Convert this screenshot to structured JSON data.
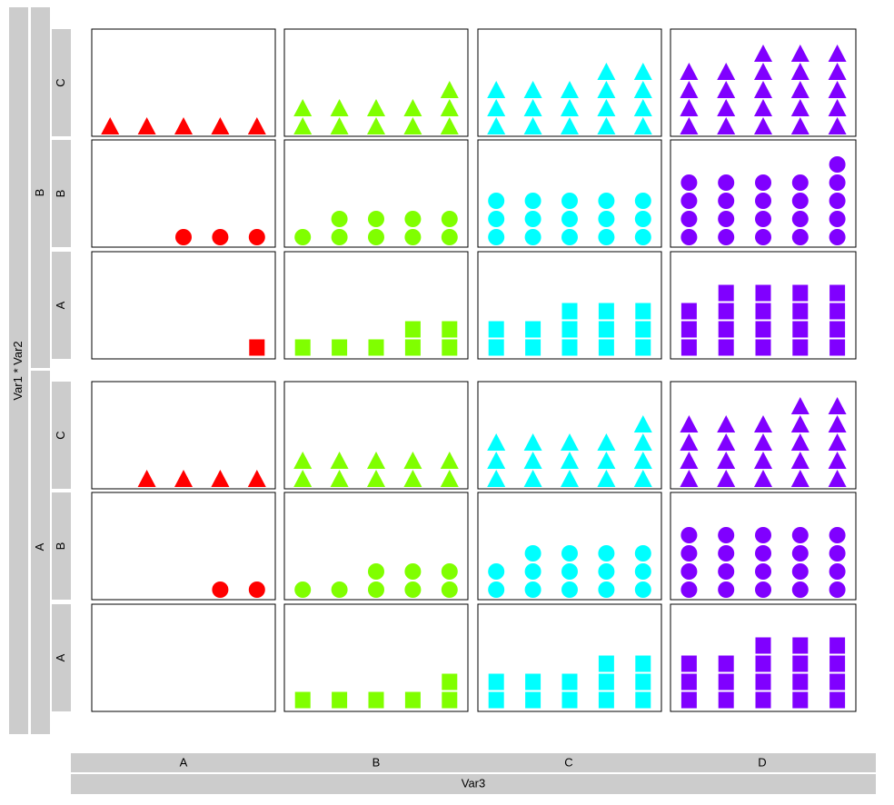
{
  "chart_data": {
    "type": "mosaic-facet",
    "ylabel": "Var1 * Var2",
    "xlabel": "Var3",
    "var1_levels": [
      "B",
      "A"
    ],
    "var2_levels": [
      "C",
      "B",
      "A"
    ],
    "var3_levels": [
      "A",
      "B",
      "C",
      "D"
    ],
    "shapes_by_var2": {
      "C": "triangle",
      "B": "circle",
      "A": "square"
    },
    "colors_by_var3": {
      "A": "#ff0000",
      "B": "#80ff00",
      "C": "#00ffff",
      "D": "#8000ff"
    },
    "ylim": [
      0,
      5
    ],
    "points_per_panel": 5,
    "panels": [
      {
        "var1": "B",
        "var2": "C",
        "var3": "A",
        "counts": [
          1,
          1,
          1,
          1,
          1
        ]
      },
      {
        "var1": "B",
        "var2": "C",
        "var3": "B",
        "counts": [
          2,
          2,
          2,
          2,
          3
        ]
      },
      {
        "var1": "B",
        "var2": "C",
        "var3": "C",
        "counts": [
          3,
          3,
          3,
          4,
          4
        ]
      },
      {
        "var1": "B",
        "var2": "C",
        "var3": "D",
        "counts": [
          4,
          4,
          5,
          5,
          5
        ]
      },
      {
        "var1": "B",
        "var2": "B",
        "var3": "A",
        "counts": [
          0,
          0,
          1,
          1,
          1
        ]
      },
      {
        "var1": "B",
        "var2": "B",
        "var3": "B",
        "counts": [
          1,
          2,
          2,
          2,
          2
        ]
      },
      {
        "var1": "B",
        "var2": "B",
        "var3": "C",
        "counts": [
          3,
          3,
          3,
          3,
          3
        ]
      },
      {
        "var1": "B",
        "var2": "B",
        "var3": "D",
        "counts": [
          4,
          4,
          4,
          4,
          5
        ]
      },
      {
        "var1": "B",
        "var2": "A",
        "var3": "A",
        "counts": [
          0,
          0,
          0,
          0,
          1
        ]
      },
      {
        "var1": "B",
        "var2": "A",
        "var3": "B",
        "counts": [
          1,
          1,
          1,
          2,
          2
        ]
      },
      {
        "var1": "B",
        "var2": "A",
        "var3": "C",
        "counts": [
          2,
          2,
          3,
          3,
          3
        ]
      },
      {
        "var1": "B",
        "var2": "A",
        "var3": "D",
        "counts": [
          3,
          4,
          4,
          4,
          4
        ]
      },
      {
        "var1": "A",
        "var2": "C",
        "var3": "A",
        "counts": [
          0,
          1,
          1,
          1,
          1
        ]
      },
      {
        "var1": "A",
        "var2": "C",
        "var3": "B",
        "counts": [
          2,
          2,
          2,
          2,
          2
        ]
      },
      {
        "var1": "A",
        "var2": "C",
        "var3": "C",
        "counts": [
          3,
          3,
          3,
          3,
          4
        ]
      },
      {
        "var1": "A",
        "var2": "C",
        "var3": "D",
        "counts": [
          4,
          4,
          4,
          5,
          5
        ]
      },
      {
        "var1": "A",
        "var2": "B",
        "var3": "A",
        "counts": [
          0,
          0,
          0,
          1,
          1
        ]
      },
      {
        "var1": "A",
        "var2": "B",
        "var3": "B",
        "counts": [
          1,
          1,
          2,
          2,
          2
        ]
      },
      {
        "var1": "A",
        "var2": "B",
        "var3": "C",
        "counts": [
          2,
          3,
          3,
          3,
          3
        ]
      },
      {
        "var1": "A",
        "var2": "B",
        "var3": "D",
        "counts": [
          4,
          4,
          4,
          4,
          4
        ]
      },
      {
        "var1": "A",
        "var2": "A",
        "var3": "A",
        "counts": [
          0,
          0,
          0,
          0,
          0
        ]
      },
      {
        "var1": "A",
        "var2": "A",
        "var3": "B",
        "counts": [
          1,
          1,
          1,
          1,
          2
        ]
      },
      {
        "var1": "A",
        "var2": "A",
        "var3": "C",
        "counts": [
          2,
          2,
          2,
          3,
          3
        ]
      },
      {
        "var1": "A",
        "var2": "A",
        "var3": "D",
        "counts": [
          3,
          3,
          4,
          4,
          4
        ]
      }
    ]
  }
}
